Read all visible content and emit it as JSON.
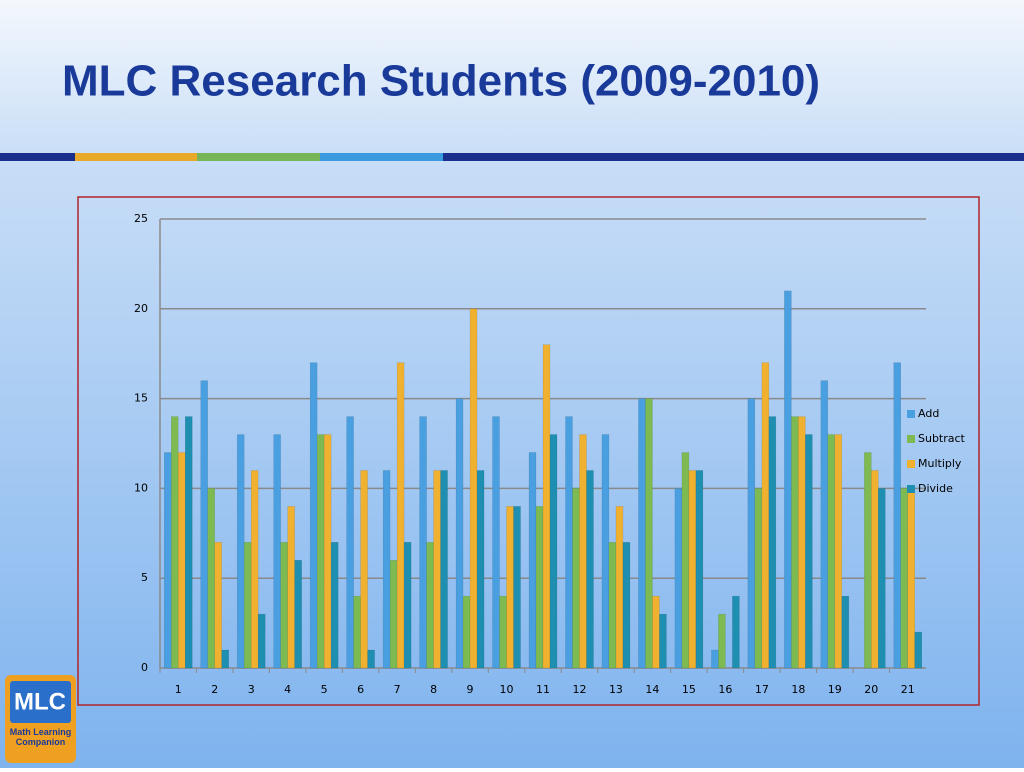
{
  "chart_data": {
    "type": "bar",
    "title": "MLC Research Students (2009-2010)",
    "categories": [
      "1",
      "2",
      "3",
      "4",
      "5",
      "6",
      "7",
      "8",
      "9",
      "10",
      "11",
      "12",
      "13",
      "14",
      "15",
      "16",
      "17",
      "18",
      "19",
      "20",
      "21"
    ],
    "series": [
      {
        "name": "Add",
        "color": "#4a9fe0",
        "values": [
          12,
          16,
          13,
          13,
          17,
          14,
          11,
          14,
          15,
          14,
          12,
          14,
          13,
          15,
          10,
          1,
          15,
          21,
          16,
          0,
          17
        ]
      },
      {
        "name": "Subtract",
        "color": "#7dbb52",
        "values": [
          14,
          10,
          7,
          7,
          13,
          4,
          6,
          7,
          4,
          4,
          9,
          10,
          7,
          15,
          12,
          3,
          10,
          14,
          13,
          12,
          10
        ]
      },
      {
        "name": "Multiply",
        "color": "#f0b030",
        "values": [
          12,
          7,
          11,
          9,
          13,
          11,
          17,
          11,
          20,
          9,
          18,
          13,
          9,
          4,
          11,
          0,
          17,
          14,
          13,
          11,
          10
        ]
      },
      {
        "name": "Divide",
        "color": "#1e8fb0",
        "values": [
          14,
          1,
          3,
          6,
          7,
          1,
          7,
          11,
          11,
          9,
          13,
          11,
          7,
          3,
          11,
          4,
          14,
          13,
          4,
          10,
          2
        ]
      }
    ],
    "ylim": [
      0,
      25
    ],
    "yticks": [
      0,
      5,
      10,
      15,
      20,
      25
    ],
    "grid": true,
    "legend": "right"
  },
  "logo": {
    "mark": "MLC",
    "caption": "Math Learning Companion"
  }
}
